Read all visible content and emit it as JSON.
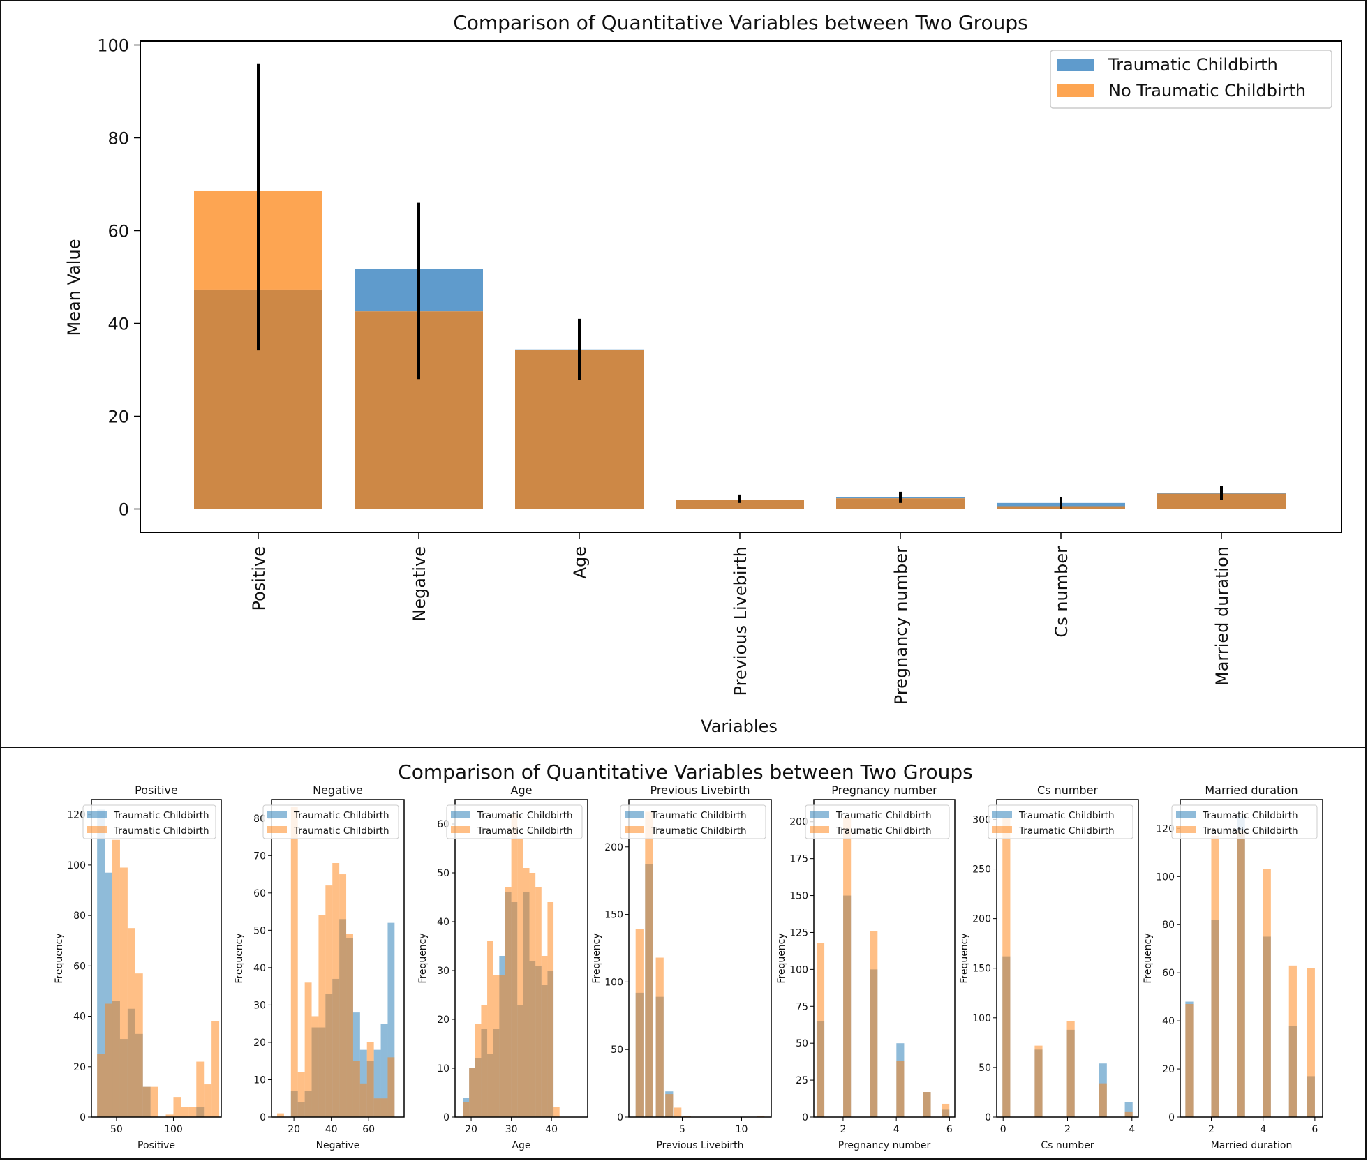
{
  "colors": {
    "traumatic": "#1f77b4",
    "no_traumatic": "#ff7f0e",
    "bar_blue": "#5f9bcc",
    "bar_orange": "#fda552",
    "overlap": "#cd8846",
    "error_bar": "#000000",
    "axis": "#000000"
  },
  "chart_data": [
    {
      "type": "bar",
      "title": "Comparison of Quantitative Variables between Two Groups",
      "xlabel": "Variables",
      "ylabel": "Mean Value",
      "ylim": [
        0,
        100
      ],
      "yticks": [
        0,
        20,
        40,
        60,
        80,
        100
      ],
      "categories": [
        "Positive",
        "Negative",
        "Age",
        "Previous Livebirth",
        "Pregnancy number",
        "Cs number",
        "Married duration"
      ],
      "series": [
        {
          "name": "Traumatic Childbirth",
          "values": [
            47.3,
            51.7,
            34.4,
            2.0,
            2.5,
            1.3,
            3.4
          ]
        },
        {
          "name": "No Traumatic Childbirth",
          "values": [
            68.5,
            42.6,
            34.3,
            2.0,
            2.3,
            0.6,
            3.3
          ]
        }
      ],
      "error_bars": [
        {
          "low": 34.2,
          "high": 95.9
        },
        {
          "low": 28.0,
          "high": 66.0
        },
        {
          "low": 27.8,
          "high": 41.0
        },
        {
          "low": 1.3,
          "high": 3.1
        },
        {
          "low": 1.3,
          "high": 3.7
        },
        {
          "low": 0.0,
          "high": 2.5
        },
        {
          "low": 1.9,
          "high": 5.0
        }
      ],
      "legend": {
        "position": "top-right",
        "entries": [
          "Traumatic Childbirth",
          "No Traumatic Childbirth"
        ]
      },
      "grid": false
    },
    {
      "type": "histogram-grid",
      "title": "Comparison of Quantitative Variables between Two Groups",
      "legend_entries": [
        "Traumatic Childbirth",
        "Traumatic Childbirth"
      ],
      "ylabel": "Frequency",
      "subplots": [
        {
          "title": "Positive",
          "xlabel": "Positive",
          "xlim": [
            28,
            142
          ],
          "xticks": [
            50,
            100
          ],
          "ylim": [
            0,
            126
          ],
          "yticks": [
            0,
            20,
            40,
            60,
            80,
            100,
            120
          ],
          "bin_start": 33,
          "bin_width": 6.7,
          "blue": [
            122,
            97,
            46,
            31,
            43,
            33,
            12,
            0,
            0,
            0,
            0,
            0,
            0,
            4,
            0,
            0
          ],
          "orange": [
            25,
            45,
            110,
            99,
            75,
            57,
            12,
            12,
            0,
            1,
            8,
            4,
            4,
            22,
            13,
            38
          ]
        },
        {
          "title": "Negative",
          "xlabel": "Negative",
          "xlim": [
            8,
            79
          ],
          "xticks": [
            20,
            40,
            60
          ],
          "ylim": [
            0,
            85
          ],
          "yticks": [
            0,
            10,
            20,
            30,
            40,
            50,
            60,
            70,
            80
          ],
          "bin_start": 11,
          "bin_width": 3.7,
          "blue": [
            0,
            0,
            7,
            4,
            7,
            24,
            24,
            33,
            37,
            53,
            48,
            28,
            18,
            15,
            18,
            25,
            52
          ],
          "orange": [
            1,
            0,
            83,
            12,
            36,
            27,
            54,
            62,
            68,
            65,
            49,
            15,
            9,
            20,
            5,
            5,
            16
          ]
        },
        {
          "title": "Age",
          "xlabel": "Age",
          "xlim": [
            16,
            49
          ],
          "xticks": [
            20,
            30,
            40
          ],
          "ylim": [
            0,
            65
          ],
          "yticks": [
            0,
            10,
            20,
            30,
            40,
            50,
            60
          ],
          "bin_start": 18,
          "bin_width": 1.5,
          "blue": [
            4,
            10,
            12,
            18,
            13,
            18,
            33,
            46,
            44,
            23,
            46,
            32,
            31,
            27,
            30,
            0
          ],
          "orange": [
            3,
            10,
            19,
            23,
            36,
            29,
            29,
            47,
            62,
            57,
            51,
            50,
            47,
            33,
            44,
            2
          ]
        },
        {
          "title": "Previous Livebirth",
          "xlabel": "Previous Livebirth",
          "xlim": [
            0.5,
            12.5
          ],
          "xticks": [
            5,
            10
          ],
          "ylim": [
            0,
            235
          ],
          "yticks": [
            0,
            50,
            100,
            150,
            200
          ],
          "bin_centers": [
            1.4,
            2.2,
            3.1,
            3.9,
            4.6,
            5.4,
            6.1,
            11.6
          ],
          "blue": [
            92,
            187,
            89,
            19,
            0,
            0,
            0,
            0
          ],
          "orange": [
            139,
            226,
            118,
            17,
            7,
            1,
            0,
            1
          ]
        },
        {
          "title": "Pregnancy number",
          "xlabel": "Pregnancy number",
          "xlim": [
            0.9,
            6.2
          ],
          "xticks": [
            2,
            4,
            6
          ],
          "ylim": [
            0,
            215
          ],
          "yticks": [
            0,
            25,
            50,
            75,
            100,
            125,
            150,
            175,
            200
          ],
          "bin_centers": [
            1.15,
            2.15,
            3.15,
            4.15,
            5.15,
            5.85
          ],
          "blue": [
            65,
            150,
            100,
            50,
            17,
            5
          ],
          "orange": [
            118,
            203,
            126,
            38,
            17,
            9
          ]
        },
        {
          "title": "Cs number",
          "xlabel": "Cs number",
          "xlim": [
            -0.2,
            4.2
          ],
          "xticks": [
            0,
            2,
            4
          ],
          "ylim": [
            0,
            320
          ],
          "yticks": [
            0,
            50,
            100,
            150,
            200,
            250,
            300
          ],
          "bin_centers": [
            0.1,
            1.1,
            2.1,
            3.1,
            3.9
          ],
          "blue": [
            162,
            68,
            88,
            54,
            15
          ],
          "orange": [
            302,
            72,
            97,
            34,
            5
          ]
        },
        {
          "title": "Married duration",
          "xlabel": "Married duration",
          "xlim": [
            0.8,
            6.3
          ],
          "xticks": [
            2,
            4,
            6
          ],
          "ylim": [
            0,
            132
          ],
          "yticks": [
            0,
            20,
            40,
            60,
            80,
            100,
            120
          ],
          "bin_centers": [
            1.15,
            2.15,
            3.15,
            4.15,
            5.15,
            5.85
          ],
          "blue": [
            48,
            82,
            125,
            75,
            38,
            17
          ],
          "orange": [
            47,
            117,
            119,
            103,
            63,
            62
          ]
        }
      ]
    }
  ]
}
